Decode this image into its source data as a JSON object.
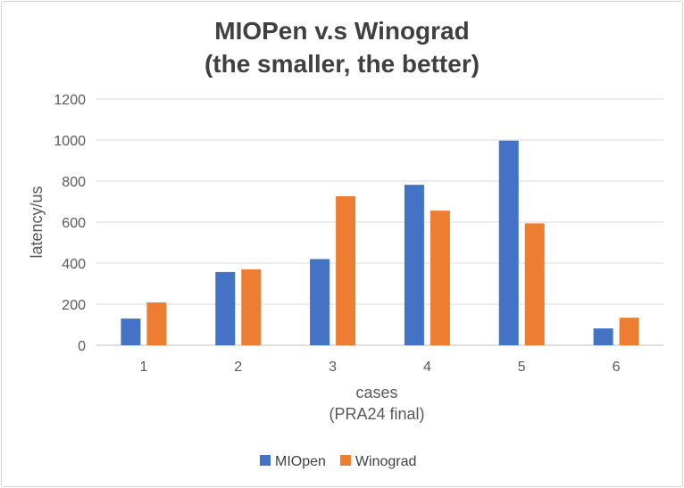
{
  "chart_data": {
    "type": "bar",
    "title": [
      "MIOPen v.s Winograd",
      "(the smaller, the better)"
    ],
    "xlabel": [
      "cases",
      "(PRA24 final)"
    ],
    "ylabel": "latency/us",
    "categories": [
      "1",
      "2",
      "3",
      "4",
      "5",
      "6"
    ],
    "ylim": [
      0,
      1200
    ],
    "yticks": [
      0,
      200,
      400,
      600,
      800,
      1000,
      1200
    ],
    "grid": true,
    "legend_position": "bottom",
    "series": [
      {
        "name": "MIOpen",
        "color": "#4472c4",
        "values": [
          130,
          357,
          420,
          782,
          997,
          82
        ]
      },
      {
        "name": "Winograd",
        "color": "#ed7d31",
        "values": [
          209,
          370,
          726,
          656,
          594,
          134
        ]
      }
    ]
  }
}
